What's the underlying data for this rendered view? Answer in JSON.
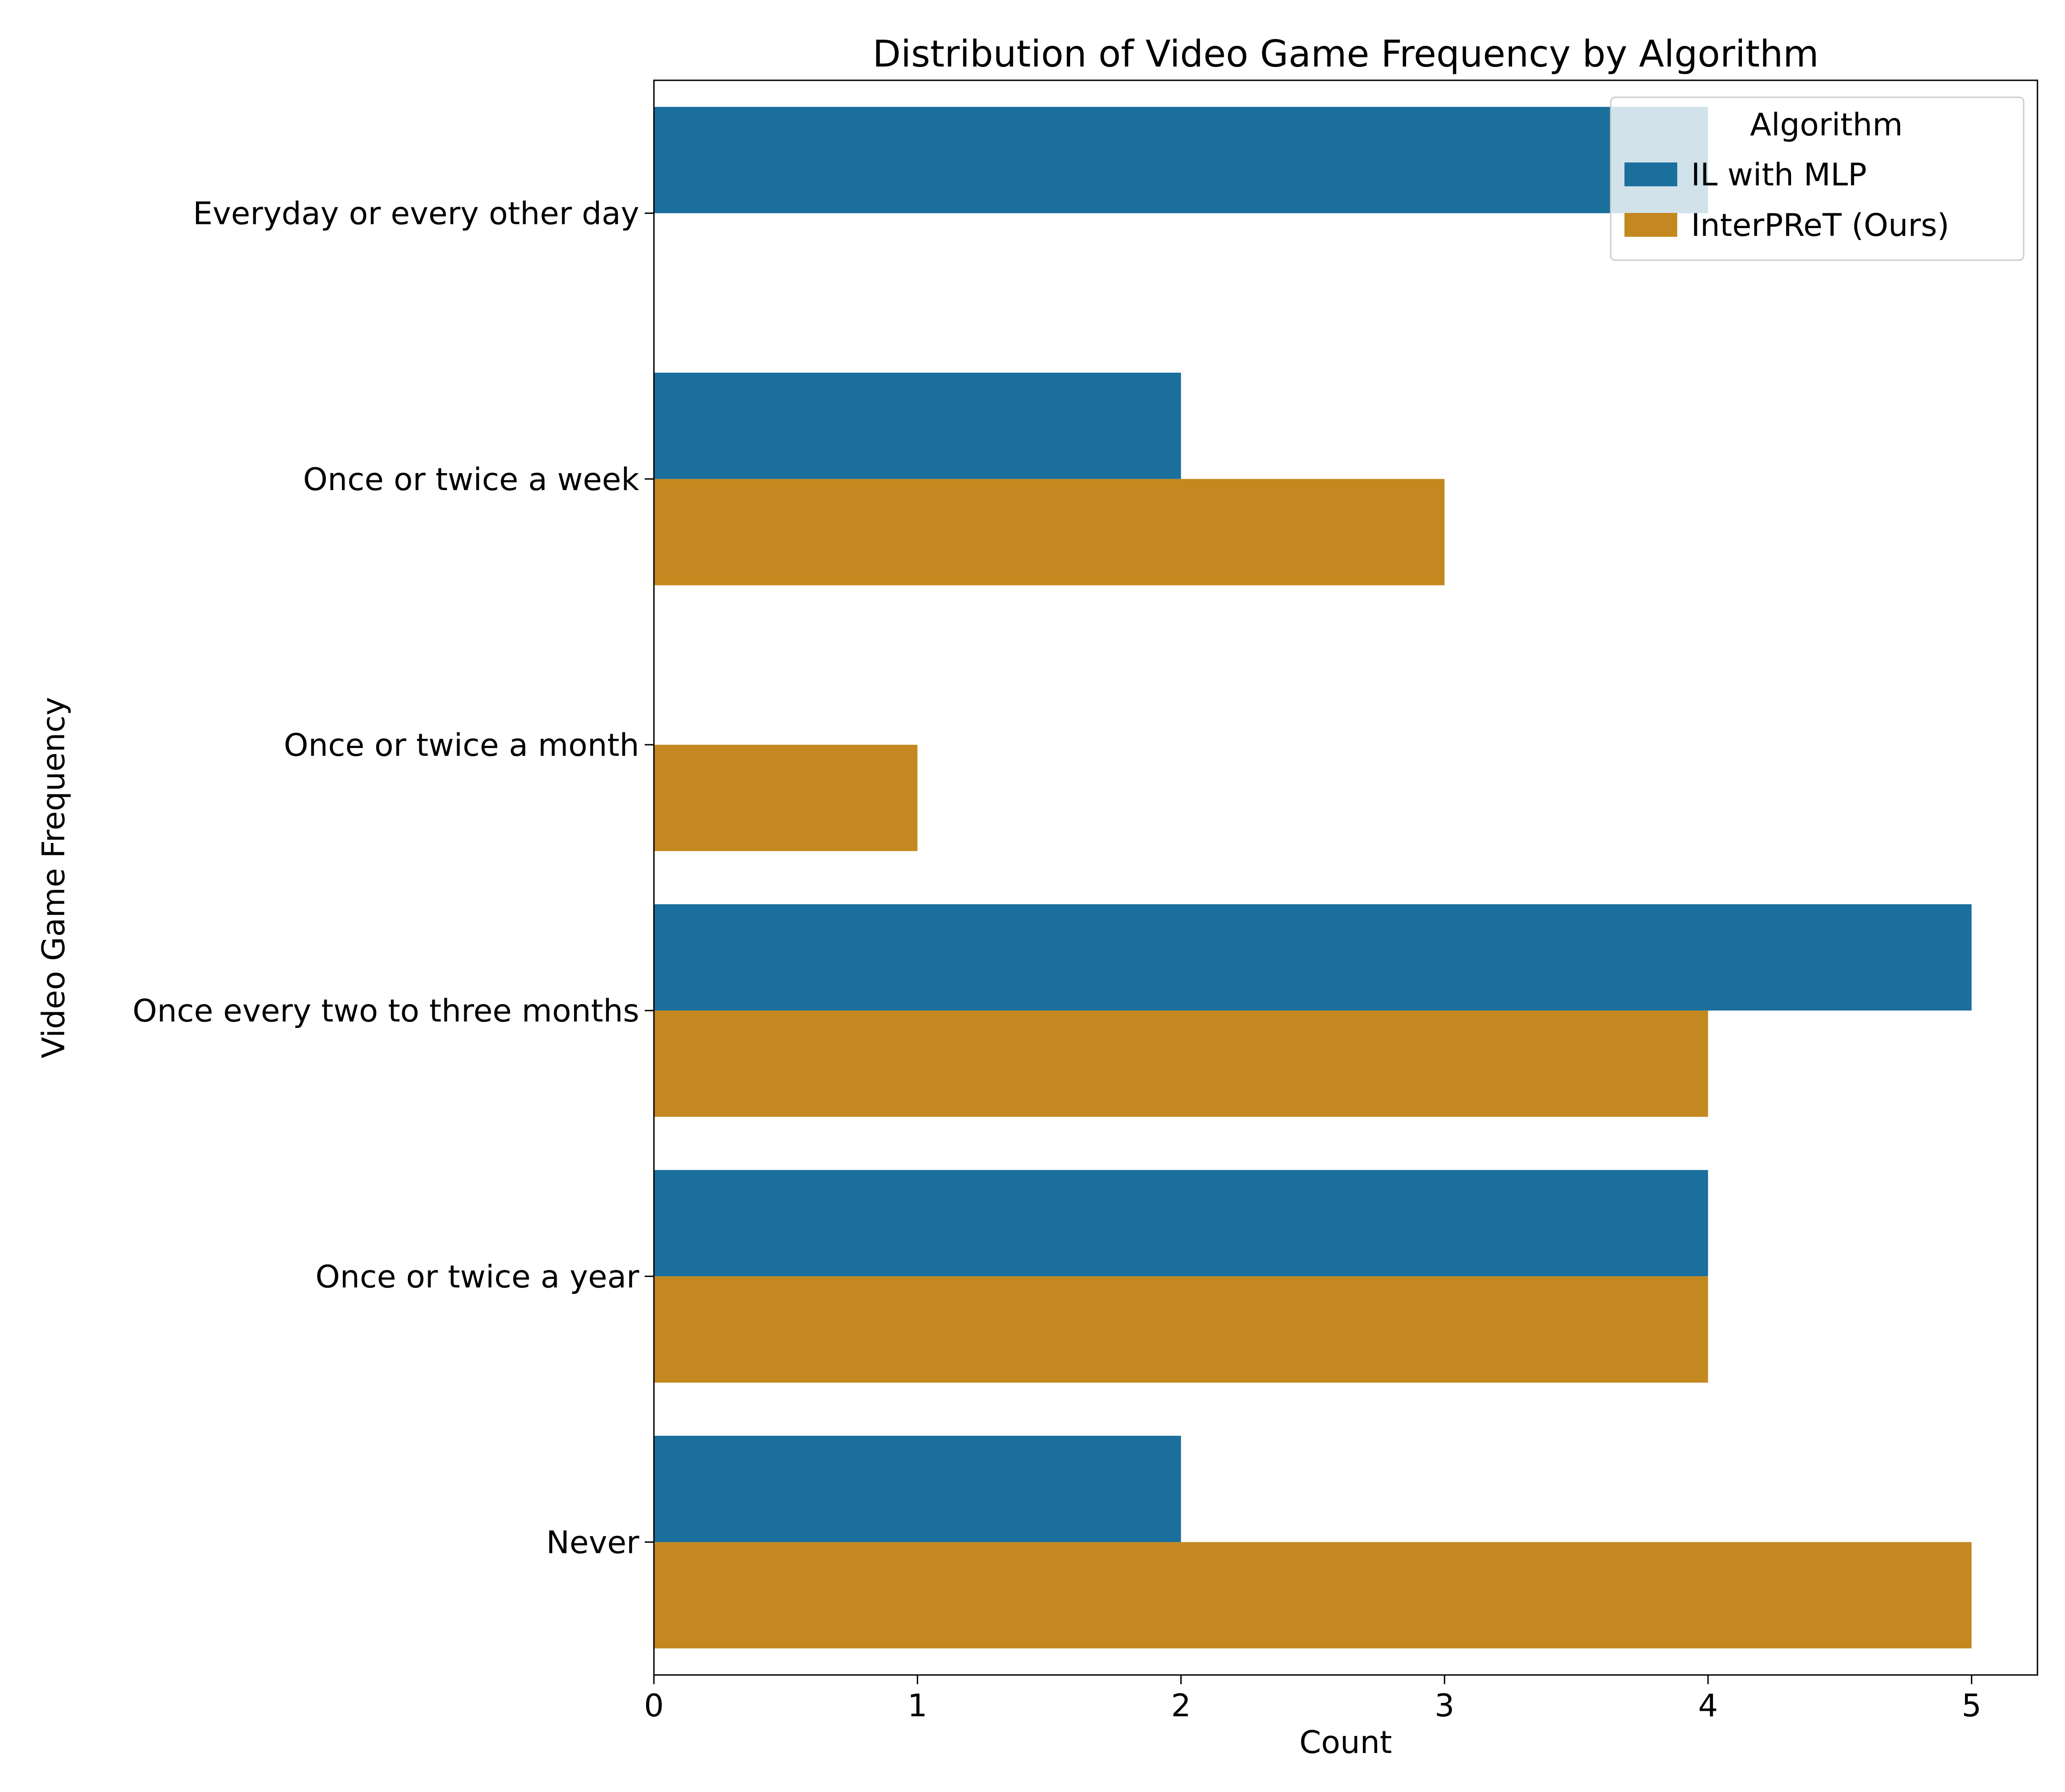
{
  "chart_data": {
    "type": "bar",
    "orientation": "horizontal",
    "title": "Distribution of Video Game Frequency by Algorithm",
    "xlabel": "Count",
    "ylabel": "Video Game Frequency",
    "xlim": [
      0,
      5.25
    ],
    "xticks": [
      "0",
      "1",
      "2",
      "3",
      "4",
      "5"
    ],
    "grid": false,
    "categories": [
      "Everyday or every other day",
      "Once or twice a week",
      "Once or twice a month",
      "Once every two to three months",
      "Once or twice a year",
      "Never"
    ],
    "series": [
      {
        "name": "IL with MLP",
        "color": "#1a6f9c",
        "values": [
          4,
          2,
          0,
          5,
          4,
          2
        ]
      },
      {
        "name": "InterPReT (Ours)",
        "color": "#c48820",
        "values": [
          0,
          3,
          1,
          4,
          4,
          5
        ]
      }
    ],
    "legend": {
      "title": "Algorithm",
      "position": "top-right"
    }
  }
}
